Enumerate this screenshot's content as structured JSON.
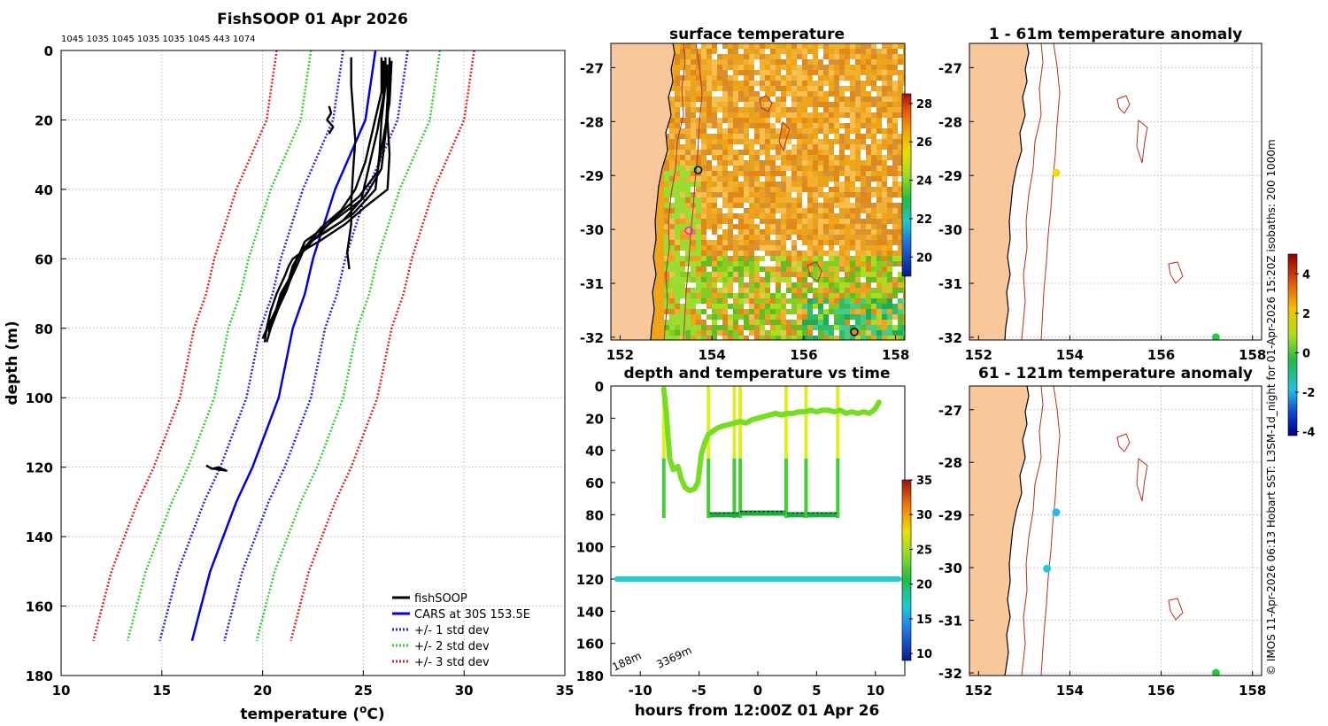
{
  "figure_title": "FishSOOP 01 Apr 2026",
  "vessel_depths_label": "1045 1035 1045 1035 1035 1045 443 1074",
  "credit": "© IMOS 11-Apr-2026 06:13 Hobart SST: L3SM-1d_night for 01-Apr-2026 15:20Z isobaths: 200  1000m",
  "colors": {
    "fishsoop": "#000000",
    "cars": "#0000dd",
    "std1": "#2222dd",
    "std2": "#33cc33",
    "std3": "#dd2222",
    "land": "#f8c89a",
    "coast": "#000000",
    "isobath": "#b03020"
  },
  "chart_data": [
    {
      "id": "profile",
      "type": "line",
      "title": "FishSOOP 01 Apr 2026",
      "xlabel": "temperature (",
      "xlabel_sup": "o",
      "xlabel_end": "C)",
      "ylabel": "depth (m)",
      "xlim": [
        10,
        35
      ],
      "ylim": [
        180,
        0
      ],
      "xticks": [
        "10",
        "15",
        "20",
        "25",
        "30",
        "35"
      ],
      "yticks": [
        "0",
        "20",
        "40",
        "60",
        "80",
        "100",
        "120",
        "140",
        "160",
        "180"
      ],
      "grid": true,
      "legend": [
        "fishSOOP",
        "CARS at 30S 153.5E",
        "+/- 1 std dev",
        "+/- 2 std dev",
        "+/- 3 std dev"
      ],
      "legend_position": "bottom-right",
      "cars": {
        "depth": [
          0,
          20,
          40,
          60,
          70,
          80,
          100,
          120,
          130,
          150,
          170
        ],
        "temp": [
          25.6,
          25.1,
          23.6,
          22.5,
          22.1,
          21.5,
          20.8,
          19.5,
          18.7,
          17.4,
          16.5
        ]
      },
      "std_offsets": [
        1.6,
        3.2,
        4.9
      ],
      "fishsoop_profiles": [
        {
          "depth": [
            2,
            10,
            20,
            30,
            40,
            45,
            50,
            55,
            57,
            60,
            62,
            65,
            70,
            75,
            80,
            84
          ],
          "temp": [
            26.3,
            26.3,
            26.2,
            26.3,
            26.2,
            25.1,
            24.1,
            22.8,
            22.2,
            21.5,
            21.3,
            21.1,
            20.7,
            20.4,
            20.2,
            20.1
          ]
        },
        {
          "depth": [
            2,
            10,
            20,
            30,
            40,
            47,
            52,
            55,
            58,
            62,
            66,
            70,
            76,
            82
          ],
          "temp": [
            26.1,
            26.1,
            25.9,
            25.8,
            25.6,
            24.5,
            23.2,
            22.4,
            21.9,
            21.5,
            21.3,
            21.0,
            20.6,
            20.3
          ]
        },
        {
          "depth": [
            3,
            15,
            25,
            35,
            42,
            48,
            53,
            57,
            61,
            65,
            70,
            78,
            84
          ],
          "temp": [
            26.4,
            26.3,
            26.0,
            25.7,
            24.8,
            23.6,
            22.8,
            22.0,
            21.6,
            21.4,
            20.9,
            20.5,
            20.2
          ]
        },
        {
          "depth": [
            2,
            12,
            22,
            32,
            40,
            46,
            51,
            56,
            60,
            64,
            69,
            74,
            80
          ],
          "temp": [
            25.9,
            25.9,
            25.5,
            25.1,
            24.6,
            23.9,
            22.9,
            22.2,
            21.7,
            21.5,
            21.2,
            20.8,
            20.4
          ]
        },
        {
          "depth": [
            4,
            14,
            24,
            34,
            41,
            49,
            54,
            58,
            62,
            67,
            72,
            79,
            83
          ],
          "temp": [
            26.2,
            26.2,
            26.1,
            25.9,
            25.2,
            24.0,
            22.6,
            22.0,
            21.7,
            21.3,
            20.9,
            20.3,
            20.0
          ]
        },
        {
          "depth": [
            3,
            13,
            23,
            33,
            43,
            50,
            55,
            59,
            63,
            68,
            73,
            78,
            81
          ],
          "temp": [
            26.0,
            26.0,
            25.7,
            25.3,
            24.9,
            23.3,
            22.1,
            21.8,
            21.5,
            21.2,
            20.8,
            20.4,
            20.3
          ]
        },
        {
          "depth": [
            2,
            10,
            18,
            26,
            34,
            44,
            50,
            54,
            58,
            63
          ],
          "temp": [
            24.4,
            24.4,
            24.5,
            24.6,
            24.5,
            24.4,
            24.4,
            24.3,
            24.2,
            24.3
          ]
        },
        {
          "depth": [
            16,
            18,
            20,
            22,
            24
          ],
          "temp": [
            23.3,
            23.4,
            23.2,
            23.5,
            23.3
          ]
        },
        {
          "depth": [
            119.5,
            120.5,
            120.0,
            121.0,
            120.3
          ],
          "temp": [
            17.2,
            17.5,
            17.8,
            18.2,
            17.4
          ]
        }
      ]
    },
    {
      "id": "sst_map",
      "type": "heatmap",
      "title": "surface temperature",
      "xticks": [
        "152",
        "154",
        "156",
        "158"
      ],
      "yticks": [
        "-27",
        "-28",
        "-29",
        "-30",
        "-31",
        "-32"
      ],
      "xlim": [
        151.8,
        158.2
      ],
      "ylim": [
        -32.05,
        -26.55
      ],
      "colorbar": {
        "min": 19,
        "max": 28.5,
        "ticks": [
          "20",
          "22",
          "24",
          "26",
          "28"
        ]
      },
      "markers": [
        {
          "lon": 153.7,
          "lat": -28.9,
          "color": "#000000"
        },
        {
          "lon": 153.5,
          "lat": -30.02,
          "color": "#e020e0"
        },
        {
          "lon": 157.1,
          "lat": -31.9,
          "color": "#000000"
        }
      ]
    },
    {
      "id": "depth_time",
      "type": "scatter",
      "title": "depth and temperature vs time",
      "xlabel": "hours from 12:00Z 01 Apr 26",
      "xlim": [
        -12.5,
        12.5
      ],
      "ylim": [
        180,
        0
      ],
      "xticks": [
        "-10",
        "-5",
        "0",
        "5",
        "10"
      ],
      "yticks": [
        "0",
        "20",
        "40",
        "60",
        "80",
        "100",
        "120",
        "140",
        "160",
        "180"
      ],
      "colorbar": {
        "min": 9,
        "max": 35,
        "ticks": [
          "10",
          "15",
          "20",
          "25",
          "30",
          "35"
        ]
      },
      "annotations": [
        "188m",
        "3369m"
      ],
      "shallow_track": {
        "hours": [
          -8.0,
          -7.8,
          -7.5,
          -7.2,
          -6.8,
          -6.5,
          -6.2,
          -5.8,
          -5.4,
          -5.1,
          -4.8,
          -4.5,
          -4.2,
          -3.8,
          -3.4,
          -3.0,
          -2.5,
          -2.0,
          -1.5,
          -1.0,
          -0.5,
          0.0,
          0.5,
          1.0,
          1.5,
          2.0,
          2.5,
          3.0,
          3.5,
          4.0,
          4.5,
          5.0,
          5.5,
          6.0,
          6.5,
          7.0,
          7.5,
          8.0,
          8.5,
          9.0,
          9.5,
          10.0,
          10.3
        ],
        "depth": [
          2,
          15,
          45,
          52,
          50,
          58,
          63,
          65,
          64,
          60,
          42,
          35,
          30,
          28,
          26,
          25,
          24,
          23,
          22,
          23,
          21,
          20,
          19,
          18,
          17,
          18,
          17,
          17,
          16,
          16,
          15,
          16,
          15,
          15,
          16,
          15,
          17,
          16,
          17,
          16,
          17,
          14,
          10
        ]
      },
      "deep_track_temp": 21,
      "deep_track_depth": 120,
      "casts": [
        -8.0,
        -4.2,
        -2.0,
        -1.5,
        2.4,
        4.1,
        6.8
      ],
      "bottom_segments": [
        [
          -4.1,
          -1.6,
          80
        ],
        [
          -1.5,
          2.3,
          79
        ],
        [
          2.5,
          4.0,
          80
        ],
        [
          4.2,
          6.7,
          80
        ]
      ]
    },
    {
      "id": "anom_upper",
      "type": "scatter",
      "title": "1 - 61m temperature anomaly",
      "xticks": [
        "152",
        "154",
        "156",
        "158"
      ],
      "yticks": [
        "-27",
        "-28",
        "-29",
        "-30",
        "-31",
        "-32"
      ],
      "points": [
        {
          "lon": 153.7,
          "lat": -28.95,
          "value": 2.1
        },
        {
          "lon": 157.2,
          "lat": -32.0,
          "value": 0.2
        }
      ]
    },
    {
      "id": "anom_lower",
      "type": "scatter",
      "title": "61 - 121m temperature anomaly",
      "xticks": [
        "152",
        "154",
        "156",
        "158"
      ],
      "yticks": [
        "-27",
        "-28",
        "-29",
        "-30",
        "-31",
        "-32"
      ],
      "points": [
        {
          "lon": 153.7,
          "lat": -28.95,
          "value": -1.6
        },
        {
          "lon": 153.5,
          "lat": -30.02,
          "value": -1.3
        },
        {
          "lon": 157.2,
          "lat": -32.0,
          "value": 0.4
        }
      ],
      "colorbar": {
        "min": -4.2,
        "max": 5.0,
        "ticks": [
          "-4",
          "-2",
          "0",
          "2",
          "4"
        ]
      }
    }
  ]
}
